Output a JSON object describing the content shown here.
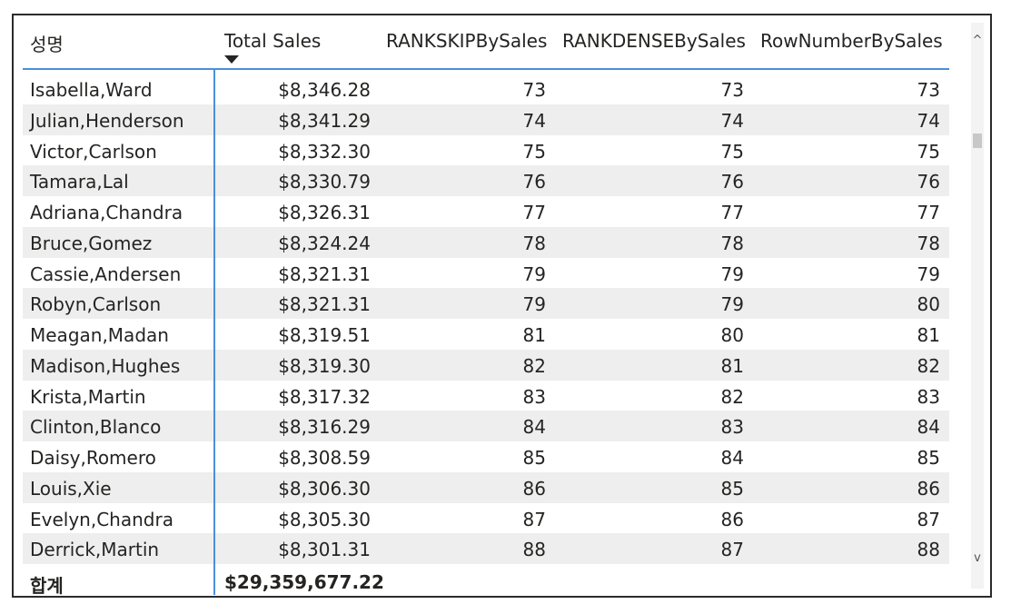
{
  "table": {
    "headers": {
      "name": "성명",
      "total_sales": "Total Sales",
      "rank_skip": "RANKSKIPBySales",
      "rank_dense": "RANKDENSEBySales",
      "row_number": "RowNumberBySales"
    },
    "rows": [
      {
        "name": "Isabella,Ward",
        "sales": "$8,346.28",
        "skip": "73",
        "dense": "73",
        "rown": "73"
      },
      {
        "name": "Julian,Henderson",
        "sales": "$8,341.29",
        "skip": "74",
        "dense": "74",
        "rown": "74"
      },
      {
        "name": "Victor,Carlson",
        "sales": "$8,332.30",
        "skip": "75",
        "dense": "75",
        "rown": "75"
      },
      {
        "name": "Tamara,Lal",
        "sales": "$8,330.79",
        "skip": "76",
        "dense": "76",
        "rown": "76"
      },
      {
        "name": "Adriana,Chandra",
        "sales": "$8,326.31",
        "skip": "77",
        "dense": "77",
        "rown": "77"
      },
      {
        "name": "Bruce,Gomez",
        "sales": "$8,324.24",
        "skip": "78",
        "dense": "78",
        "rown": "78"
      },
      {
        "name": "Cassie,Andersen",
        "sales": "$8,321.31",
        "skip": "79",
        "dense": "79",
        "rown": "79"
      },
      {
        "name": "Robyn,Carlson",
        "sales": "$8,321.31",
        "skip": "79",
        "dense": "79",
        "rown": "80"
      },
      {
        "name": "Meagan,Madan",
        "sales": "$8,319.51",
        "skip": "81",
        "dense": "80",
        "rown": "81"
      },
      {
        "name": "Madison,Hughes",
        "sales": "$8,319.30",
        "skip": "82",
        "dense": "81",
        "rown": "82"
      },
      {
        "name": "Krista,Martin",
        "sales": "$8,317.32",
        "skip": "83",
        "dense": "82",
        "rown": "83"
      },
      {
        "name": "Clinton,Blanco",
        "sales": "$8,316.29",
        "skip": "84",
        "dense": "83",
        "rown": "84"
      },
      {
        "name": "Daisy,Romero",
        "sales": "$8,308.59",
        "skip": "85",
        "dense": "84",
        "rown": "85"
      },
      {
        "name": "Louis,Xie",
        "sales": "$8,306.30",
        "skip": "86",
        "dense": "85",
        "rown": "86"
      },
      {
        "name": "Evelyn,Chandra",
        "sales": "$8,305.30",
        "skip": "87",
        "dense": "86",
        "rown": "87"
      },
      {
        "name": "Derrick,Martin",
        "sales": "$8,301.31",
        "skip": "88",
        "dense": "87",
        "rown": "88"
      }
    ],
    "total": {
      "label": "합계",
      "sales": "$29,359,677.22"
    },
    "sort": {
      "column": "Total Sales",
      "direction": "descending",
      "icon": "sort-descending-icon"
    }
  },
  "scrollbar": {
    "up_icon": "chevron-up-icon",
    "down_icon": "chevron-down-icon",
    "up_glyph": "^",
    "down_glyph": "v"
  },
  "colors": {
    "accent": "#4a90d9",
    "row_alt": "#eeeeee",
    "text": "#252423"
  }
}
